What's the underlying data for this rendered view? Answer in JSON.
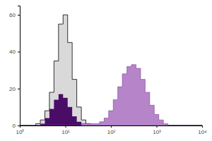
{
  "chart_data": {
    "type": "area",
    "log": "x",
    "x": [
      1,
      1.26,
      1.58,
      2,
      2.51,
      3.16,
      3.98,
      5.01,
      6.31,
      7.94,
      10,
      12.6,
      15.8,
      20,
      25.1,
      31.6,
      39.8,
      50.1,
      63.1,
      79.4,
      100,
      126,
      158,
      200,
      251,
      316,
      398,
      501,
      631,
      794,
      1000,
      1259,
      1585,
      1995,
      2512,
      3162,
      3981,
      5012,
      6310,
      7943,
      10000
    ],
    "series": [
      {
        "color": "#d9d9d9",
        "values": [
          0,
          0,
          0,
          0,
          1,
          3,
          8,
          18,
          35,
          55,
          60,
          45,
          25,
          10,
          3,
          1,
          0,
          0,
          0,
          0,
          0,
          0,
          0,
          0,
          0,
          0,
          0,
          0,
          0,
          0,
          0,
          0,
          0,
          0,
          0,
          0,
          0,
          0,
          0,
          0,
          0
        ]
      },
      {
        "color": "#4a0d67",
        "values": [
          0,
          0,
          0,
          0,
          0,
          1,
          4,
          9,
          14,
          17,
          15,
          10,
          5,
          2,
          1,
          0,
          0,
          0,
          0,
          0,
          0,
          0,
          0,
          0,
          0,
          0,
          0,
          0,
          0,
          0,
          0,
          0,
          0,
          0,
          0,
          0,
          0,
          0,
          0,
          0,
          0
        ]
      },
      {
        "color": "#b684c9",
        "values": [
          0,
          0,
          0,
          0,
          0,
          0,
          0,
          0,
          0,
          0,
          0,
          0,
          0,
          0,
          1,
          1,
          1,
          1,
          2,
          4,
          8,
          14,
          21,
          28,
          32,
          33,
          31,
          25,
          18,
          11,
          6,
          3,
          1,
          0,
          0,
          0,
          0,
          0,
          0,
          0,
          0
        ]
      }
    ],
    "xlim": [
      1,
      10000
    ],
    "xticks": [
      {
        "value": 1,
        "label": "10⁰"
      },
      {
        "value": 10,
        "label": "10¹"
      },
      {
        "value": 100,
        "label": "10²"
      },
      {
        "value": 1000,
        "label": "10³"
      },
      {
        "value": 10000,
        "label": "10⁴"
      }
    ],
    "ylim": [
      0,
      65
    ],
    "yticks": [
      0,
      20,
      40,
      60
    ]
  }
}
